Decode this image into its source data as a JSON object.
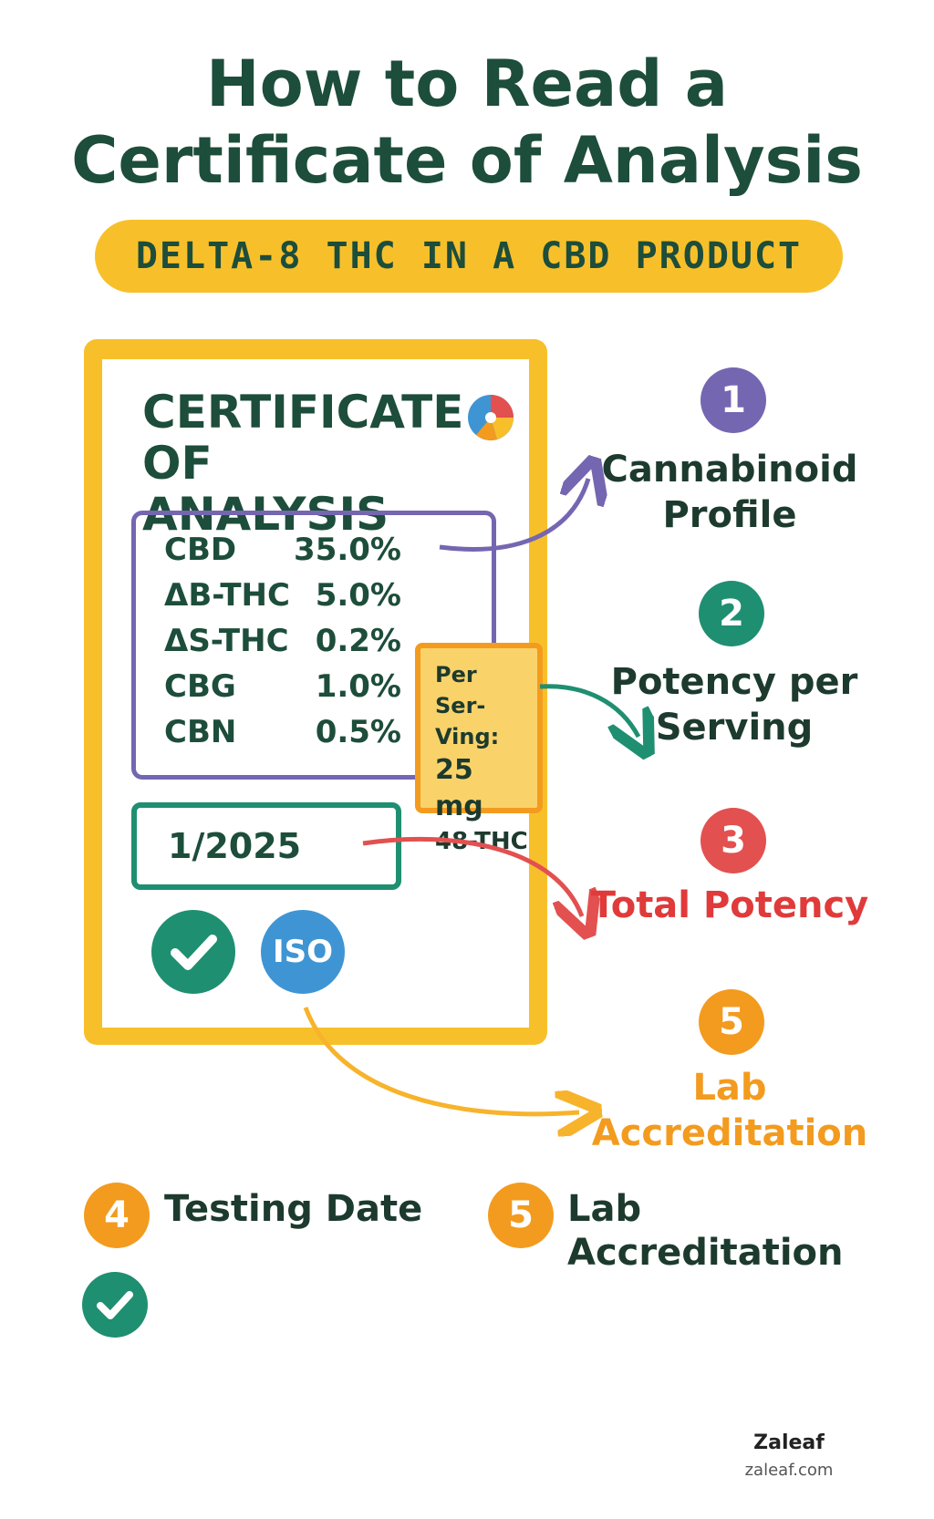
{
  "header": {
    "title_line1": "How to Read a",
    "title_line2": "Certificate of Analysis",
    "subtitle": "DELTA-8 THC IN A CBD PRODUCT"
  },
  "certificate": {
    "title_line1": "CERTIFICATE",
    "title_line2": "OF ANALYSIS",
    "rows": [
      {
        "name": "CBD",
        "value": "35.0%"
      },
      {
        "name": "ΔB-THC",
        "value": "5.0%"
      },
      {
        "name": "ΔS-THC",
        "value": "0.2%"
      },
      {
        "name": "CBG",
        "value": "1.0%"
      },
      {
        "name": "CBN",
        "value": "0.5%"
      }
    ],
    "serving": {
      "line1a": "Per Ser-",
      "line1b": "Ving:",
      "line2": "25 mg",
      "line3": "48-THC"
    },
    "date": "1/2025",
    "iso_label": "ISO"
  },
  "steps": [
    {
      "number": "1",
      "label_line1": "Cannabinoid",
      "label_line2": "Profile",
      "color": "#7566b1",
      "label_color": "#1d3a2e"
    },
    {
      "number": "2",
      "label_line1": "Potency per",
      "label_line2": "Serving",
      "color": "#1f8f71",
      "label_color": "#1d3a2e"
    },
    {
      "number": "3",
      "label_line1": "Total Potency",
      "label_line2": "",
      "color": "#e35050",
      "label_color": "#e03a3a"
    },
    {
      "number": "5",
      "label_line1": "Lab",
      "label_line2": "Accreditation",
      "color": "#f39b1f",
      "label_color": "#f39b1f"
    }
  ],
  "bottom": {
    "item4_number": "4",
    "item4_label": "Testing Date",
    "item5_number": "5",
    "item5_label_line1": "Lab",
    "item5_label_line2": "Accreditation"
  },
  "brand": {
    "name": "Zaleaf",
    "url": "zaleaf.com"
  }
}
